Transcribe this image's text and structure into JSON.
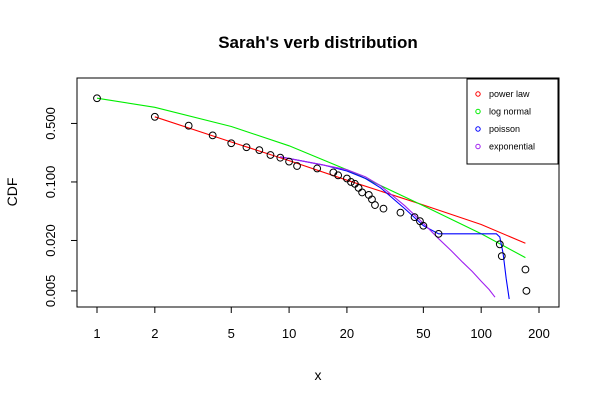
{
  "chart_data": {
    "type": "scatter",
    "title": "Sarah's verb distribution",
    "xlabel": "x",
    "ylabel": "CDF",
    "x_scale": "log",
    "y_scale": "log",
    "xlim": [
      1,
      200
    ],
    "ylim": [
      0.004,
      1.4
    ],
    "x_ticks": [
      {
        "value": 1,
        "label": "1"
      },
      {
        "value": 2,
        "label": "2"
      },
      {
        "value": 5,
        "label": "5"
      },
      {
        "value": 10,
        "label": "10"
      },
      {
        "value": 20,
        "label": "20"
      },
      {
        "value": 50,
        "label": "50"
      },
      {
        "value": 100,
        "label": "100"
      },
      {
        "value": 200,
        "label": "200"
      }
    ],
    "y_ticks": [
      {
        "value": 0.005,
        "label": "0.005"
      },
      {
        "value": 0.02,
        "label": "0.020"
      },
      {
        "value": 0.1,
        "label": "0.100"
      },
      {
        "value": 0.5,
        "label": "0.500"
      }
    ],
    "grid": false,
    "legend_position": "top-right",
    "points": {
      "x": [
        1,
        2,
        3,
        4,
        5,
        6,
        7,
        8,
        9,
        10,
        11,
        14,
        17,
        18,
        20,
        21,
        22,
        23,
        24,
        26,
        27,
        28,
        31,
        38,
        45,
        48,
        50,
        60,
        125,
        128,
        170,
        172
      ],
      "y": [
        1.0,
        0.6,
        0.47,
        0.36,
        0.29,
        0.26,
        0.24,
        0.21,
        0.195,
        0.175,
        0.155,
        0.145,
        0.13,
        0.12,
        0.11,
        0.1,
        0.095,
        0.085,
        0.075,
        0.07,
        0.062,
        0.053,
        0.048,
        0.043,
        0.038,
        0.034,
        0.03,
        0.024,
        0.018,
        0.013,
        0.009,
        0.005
      ]
    },
    "series": [
      {
        "name": "power law",
        "color": "#ff0000",
        "x": [
          2,
          5,
          10,
          20,
          50,
          100,
          170
        ],
        "y": [
          0.6,
          0.3,
          0.18,
          0.105,
          0.053,
          0.031,
          0.0185
        ]
      },
      {
        "name": "log normal",
        "color": "#00ee00",
        "x": [
          1,
          2,
          5,
          10,
          20,
          50,
          100,
          170
        ],
        "y": [
          1.0,
          0.78,
          0.46,
          0.27,
          0.14,
          0.052,
          0.024,
          0.0125
        ]
      },
      {
        "name": "poisson",
        "color": "#0000ff",
        "x": [
          9,
          15,
          20,
          25,
          30,
          40,
          50,
          60,
          120,
          125,
          130,
          135,
          140
        ],
        "y": [
          0.2,
          0.16,
          0.135,
          0.11,
          0.085,
          0.048,
          0.03,
          0.024,
          0.024,
          0.022,
          0.014,
          0.007,
          0.004
        ]
      },
      {
        "name": "exponential",
        "color": "#a020f0",
        "x": [
          9,
          15,
          20,
          25,
          30,
          40,
          50,
          60,
          70,
          80,
          90,
          100,
          110,
          118
        ],
        "y": [
          0.2,
          0.16,
          0.14,
          0.115,
          0.09,
          0.052,
          0.032,
          0.021,
          0.015,
          0.011,
          0.0085,
          0.0065,
          0.0052,
          0.0042
        ]
      }
    ]
  }
}
